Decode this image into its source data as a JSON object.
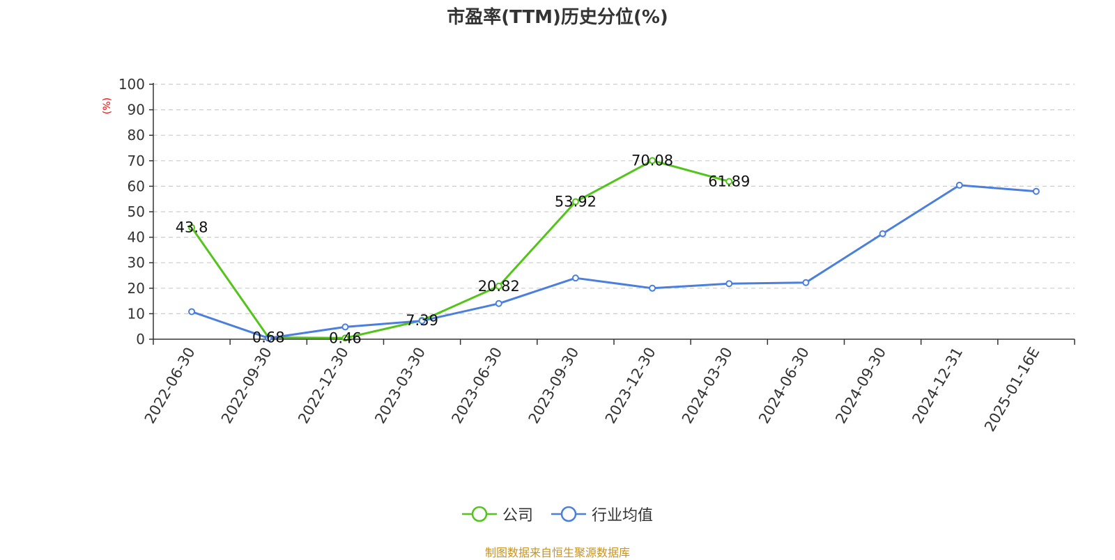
{
  "chart_data": {
    "type": "line",
    "title": "市盈率(TTM)历史分位(%)",
    "ylabel": "(%)",
    "xlabel": "",
    "ylim": [
      0,
      100
    ],
    "yticks": [
      "0",
      "10",
      "20",
      "30",
      "40",
      "50",
      "60",
      "70",
      "80",
      "90",
      "100"
    ],
    "categories": [
      "2022-06-30",
      "2022-09-30",
      "2022-12-30",
      "2023-03-30",
      "2023-06-30",
      "2023-09-30",
      "2023-12-30",
      "2024-03-30",
      "2024-06-30",
      "2024-09-30",
      "2024-12-31",
      "2025-01-16E"
    ],
    "series": [
      {
        "name": "公司",
        "color": "#52c41a",
        "values": [
          43.8,
          0.68,
          0.46,
          7.39,
          20.82,
          53.92,
          70.08,
          61.89,
          null,
          null,
          null,
          null
        ],
        "labels": [
          "43.8",
          "0.68",
          "0.46",
          "7.39",
          "20.82",
          "53.92",
          "70.08",
          "61.89",
          null,
          null,
          null,
          null
        ]
      },
      {
        "name": "行业均值",
        "color": "#4a7fde",
        "values": [
          10.8,
          0.4,
          4.8,
          7.2,
          14.0,
          24.0,
          20.0,
          21.8,
          22.2,
          41.4,
          60.4,
          58.0
        ],
        "labels": []
      }
    ],
    "grid": true,
    "legend_position": "bottom-center"
  },
  "source_note": "制图数据来自恒生聚源数据库"
}
